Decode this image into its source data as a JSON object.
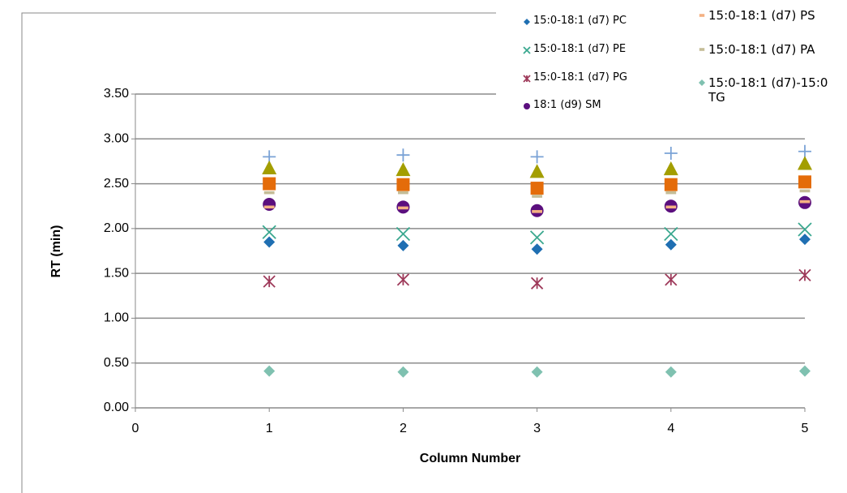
{
  "chart_data": {
    "type": "scatter",
    "y_label": "RT (min)",
    "x_label": "Column Number",
    "x": [
      1,
      2,
      3,
      4,
      5
    ],
    "xlim": [
      0,
      5
    ],
    "xticks": [
      0,
      1,
      2,
      3,
      4,
      5
    ],
    "ylim": [
      0,
      3.5
    ],
    "yticks": [
      {
        "value": 0,
        "label": "0.00"
      },
      {
        "value": 0.5,
        "label": "0.50"
      },
      {
        "value": 1,
        "label": "1.00"
      },
      {
        "value": 1.5,
        "label": "1.50"
      },
      {
        "value": 2,
        "label": "2.00"
      },
      {
        "value": 2.5,
        "label": "2.50"
      },
      {
        "value": 3,
        "label": "3.00"
      },
      {
        "value": 3.5,
        "label": "3.50"
      }
    ],
    "grid": true,
    "series": [
      {
        "color": "#7aa2d6",
        "marker": "plus",
        "values": [
          2.8,
          2.82,
          2.8,
          2.84,
          2.86
        ]
      },
      {
        "color": "#a39e00",
        "marker": "triangle",
        "values": [
          2.67,
          2.65,
          2.63,
          2.66,
          2.72
        ]
      },
      {
        "color": "#e46c0a",
        "marker": "square",
        "values": [
          2.5,
          2.49,
          2.45,
          2.49,
          2.52
        ]
      },
      {
        "name": "15:0-18:1 (d7) PC",
        "color": "#1f6fb2",
        "marker": "diamond",
        "values": [
          1.85,
          1.81,
          1.77,
          1.82,
          1.88
        ]
      },
      {
        "name": "15:0-18:1 (d7) PE",
        "color": "#3aa88f",
        "marker": "x",
        "values": [
          1.96,
          1.94,
          1.9,
          1.94,
          1.99
        ]
      },
      {
        "name": "15:0-18:1 (d7) PG",
        "color": "#9e3a5a",
        "marker": "asterisk",
        "values": [
          1.41,
          1.43,
          1.39,
          1.43,
          1.48
        ]
      },
      {
        "name": "18:1 (d9) SM",
        "color": "#5b0f7e",
        "marker": "circle",
        "values": [
          2.27,
          2.24,
          2.2,
          2.25,
          2.29
        ]
      },
      {
        "name": "15:0-18:1 (d7) PS",
        "color": "#f4b183",
        "marker": "dash",
        "values": [
          2.24,
          2.23,
          2.19,
          2.24,
          2.3
        ]
      },
      {
        "name": "15:0-18:1 (d7) PA",
        "color": "#c4bd97",
        "marker": "dash",
        "values": [
          2.4,
          2.4,
          2.36,
          2.4,
          2.42
        ]
      },
      {
        "name": "15:0-18:1 (d7)-15:0 TG",
        "color": "#7fc1b0",
        "marker": "diamond",
        "values": [
          0.41,
          0.4,
          0.4,
          0.4,
          0.41
        ]
      }
    ]
  }
}
